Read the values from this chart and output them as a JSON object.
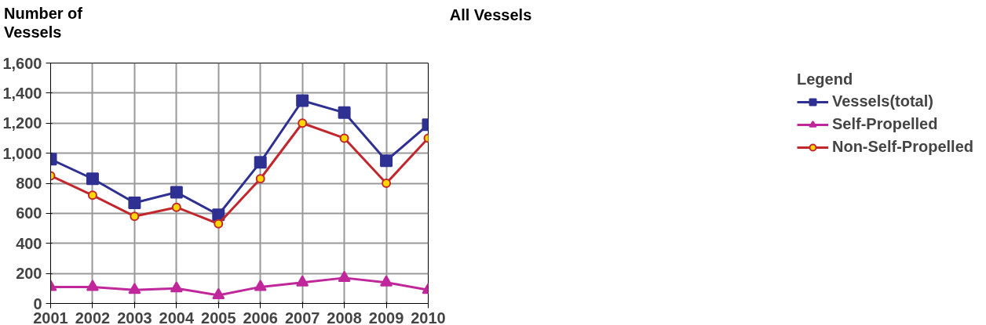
{
  "chart_data": {
    "type": "line",
    "title": "All Vessels",
    "ylabel": "Number of\nVessels",
    "x": [
      2001,
      2002,
      2003,
      2004,
      2005,
      2006,
      2007,
      2008,
      2009,
      2010
    ],
    "xlim": [
      2001,
      2010
    ],
    "xticks": [
      2001,
      2002,
      2003,
      2004,
      2005,
      2006,
      2007,
      2008,
      2009,
      2010
    ],
    "ylim": [
      0,
      1600
    ],
    "yticks": [
      {
        "value": 0,
        "label": "0"
      },
      {
        "value": 200,
        "label": "200"
      },
      {
        "value": 400,
        "label": "400"
      },
      {
        "value": 600,
        "label": "600"
      },
      {
        "value": 800,
        "label": "800"
      },
      {
        "value": 1000,
        "label": "1,000"
      },
      {
        "value": 1200,
        "label": "1,200"
      },
      {
        "value": 1400,
        "label": "1,400"
      },
      {
        "value": 1600,
        "label": "1,600"
      }
    ],
    "grid": true,
    "legend": "right",
    "legend_title": "Legend",
    "line_style": "solid",
    "series": [
      {
        "name": "Vessels(total)",
        "color": "#2e3192",
        "marker": "square",
        "values": [
          960,
          830,
          670,
          740,
          590,
          940,
          1350,
          1270,
          950,
          1190
        ]
      },
      {
        "name": "Self-Propelled",
        "color": "#c0279a",
        "marker": "triangle",
        "values": [
          110,
          110,
          90,
          100,
          55,
          110,
          140,
          170,
          140,
          90
        ]
      },
      {
        "name": "Non-Self-Propelled",
        "color": "#c1272d",
        "marker": "circle",
        "values": [
          850,
          720,
          580,
          640,
          530,
          830,
          1200,
          1100,
          800,
          1100
        ]
      }
    ]
  }
}
